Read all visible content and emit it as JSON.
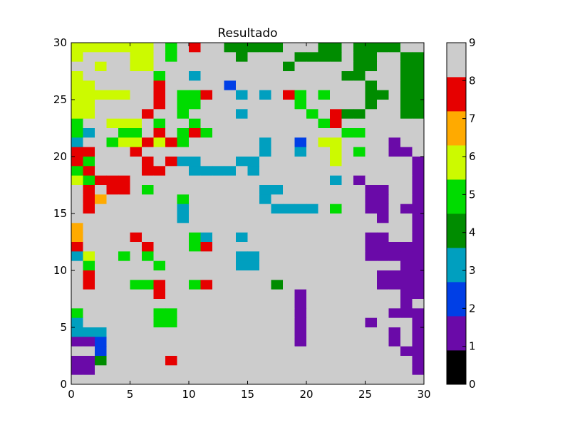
{
  "chart_data": {
    "type": "heatmap",
    "title": "Resultado",
    "xlabel": "",
    "ylabel": "",
    "xlim": [
      0,
      30
    ],
    "ylim": [
      0,
      30
    ],
    "x_ticks": [
      0,
      5,
      10,
      15,
      20,
      25,
      30
    ],
    "y_ticks": [
      0,
      5,
      10,
      15,
      20,
      25,
      30
    ],
    "colorbar": {
      "range": [
        0,
        9
      ],
      "ticks": [
        0,
        1,
        2,
        3,
        4,
        5,
        6,
        7,
        8,
        9
      ],
      "colors": [
        "#000000",
        "#6a0aa8",
        "#003fe6",
        "#009fbf",
        "#008c00",
        "#00dc00",
        "#ccfa00",
        "#ffaa00",
        "#e60000",
        "#cccccc"
      ]
    },
    "rows_top_to_bottom": [
      "666666695989944444999449444499",
      "699996695999994999944449449944",
      "996996699999999999499999449944",
      "699999959939999999999994499944",
      "669999989999929999999999949944",
      "666669989558993939859599944944",
      "669999989559999999959999949944",
      "669999899599993999995984499944",
      "599666959959999999999589999999",
      "539955989585999999999995599999",
      "399566868599999939929669999199",
      "889998999999999939939969599119",
      "859999898339993399999969999991",
      "589999889933339399999999999991",
      "658889999999999999999939199991",
      "989889599999999933999999911991",
      "987999999599999939999999911991",
      "989999999399999993333959911911",
      "999999999399999999999999991991",
      "799999999999999999999999999991",
      "799998999953993999999999911991",
      "899999899958999999999999911111",
      "369959599999993399999999911111",
      "959999959999993399999999999911",
      "989999999999999999999999991111",
      "989995589958999994999999991111",
      "999999989999999999919999999911",
      "999999999999999999919999999919",
      "599999955999999999919999999111",
      "399999955999999999919999919991",
      "333999999999999999919999999191",
      "112999999999999999919999999191",
      "992999999999999999999999999911",
      "114999998999999999999999999991",
      "119999999999999999999999999991",
      "999999999999999999999999999999"
    ]
  }
}
